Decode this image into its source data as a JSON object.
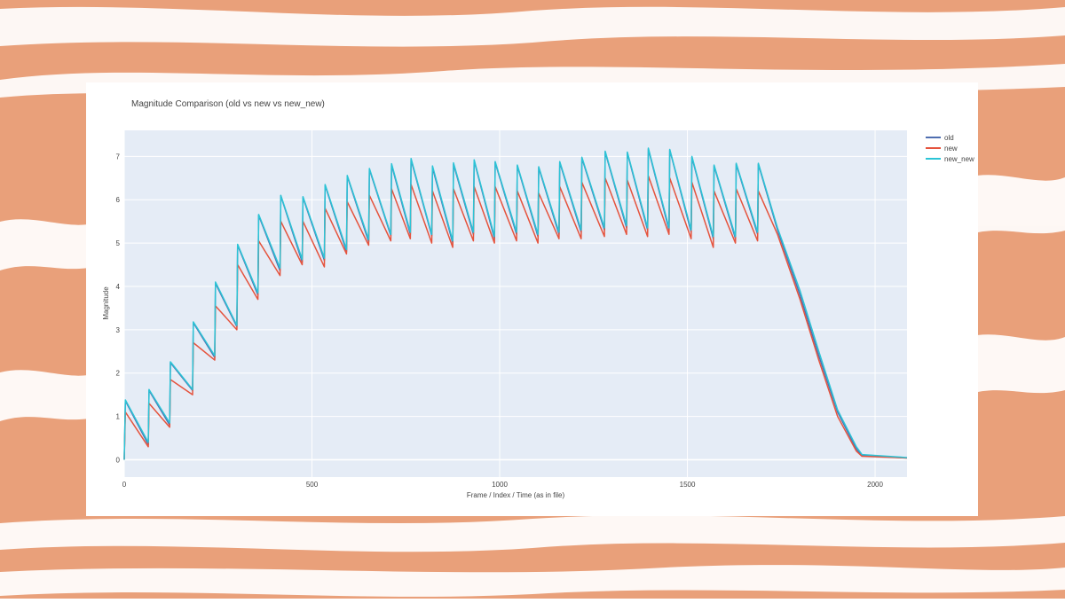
{
  "chart_data": {
    "type": "line",
    "title": "Magnitude Comparison (old vs new vs new_new)",
    "x_label": "Frame / Index / Time (as in file)",
    "y_label": "Magnitude",
    "x": [
      0,
      3,
      64,
      66,
      121,
      123,
      182,
      184,
      241,
      243,
      300,
      302,
      356,
      358,
      415,
      417,
      474,
      476,
      533,
      535,
      592,
      594,
      651,
      653,
      710,
      712,
      762,
      764,
      819,
      821,
      875,
      877,
      930,
      932,
      986,
      988,
      1045,
      1047,
      1102,
      1104,
      1158,
      1160,
      1217,
      1219,
      1279,
      1281,
      1338,
      1340,
      1394,
      1396,
      1451,
      1453,
      1510,
      1512,
      1569,
      1571,
      1628,
      1630,
      1687,
      1689,
      1740,
      1800,
      1850,
      1900,
      1950,
      1965,
      2085
    ],
    "series": [
      {
        "name": "old",
        "color": "#4f6eb0",
        "values": [
          0,
          1.36,
          0.35,
          1.6,
          0.8,
          2.24,
          1.6,
          3.16,
          2.36,
          4.07,
          3.07,
          4.95,
          3.8,
          5.64,
          4.36,
          6.09,
          4.56,
          6.05,
          4.6,
          6.33,
          4.8,
          6.54,
          5.03,
          6.7,
          5.17,
          6.8,
          5.2,
          6.92,
          5.17,
          6.74,
          5.0,
          6.82,
          5.2,
          6.9,
          5.1,
          6.86,
          5.2,
          6.78,
          5.15,
          6.74,
          5.2,
          6.86,
          5.25,
          6.96,
          5.3,
          7.1,
          5.35,
          7.08,
          5.3,
          7.17,
          5.3,
          7.15,
          5.25,
          6.98,
          5.1,
          6.78,
          5.1,
          6.82,
          5.2,
          6.82,
          5.3,
          3.8,
          2.4,
          1.1,
          0.25,
          0.1,
          0.04
        ]
      },
      {
        "name": "new",
        "color": "#e5533d",
        "values": [
          0,
          1.1,
          0.3,
          1.3,
          0.75,
          1.85,
          1.5,
          2.7,
          2.3,
          3.55,
          3.0,
          4.5,
          3.7,
          5.05,
          4.25,
          5.5,
          4.5,
          5.5,
          4.45,
          5.8,
          4.75,
          5.95,
          4.95,
          6.1,
          5.05,
          6.25,
          5.1,
          6.35,
          5.0,
          6.2,
          4.9,
          6.25,
          5.05,
          6.3,
          5.0,
          6.3,
          5.05,
          6.2,
          5.0,
          6.15,
          5.1,
          6.3,
          5.1,
          6.4,
          5.15,
          6.5,
          5.2,
          6.45,
          5.15,
          6.55,
          5.2,
          6.5,
          5.1,
          6.4,
          4.9,
          6.2,
          5.0,
          6.25,
          5.05,
          6.2,
          5.2,
          3.7,
          2.3,
          1.0,
          0.2,
          0.08,
          0.04
        ]
      },
      {
        "name": "new_new",
        "color": "#2bc4d6",
        "values": [
          0,
          1.38,
          0.4,
          1.62,
          0.85,
          2.26,
          1.62,
          3.18,
          2.4,
          4.1,
          3.1,
          4.97,
          3.85,
          5.66,
          4.42,
          6.1,
          4.62,
          6.07,
          4.65,
          6.35,
          4.85,
          6.56,
          5.08,
          6.72,
          5.2,
          6.83,
          5.25,
          6.95,
          5.2,
          6.78,
          5.05,
          6.85,
          5.25,
          6.92,
          5.15,
          6.88,
          5.25,
          6.8,
          5.2,
          6.76,
          5.25,
          6.88,
          5.3,
          6.98,
          5.35,
          7.12,
          5.4,
          7.1,
          5.35,
          7.19,
          5.35,
          7.16,
          5.3,
          7.0,
          5.15,
          6.8,
          5.15,
          6.84,
          5.25,
          6.84,
          5.35,
          3.9,
          2.5,
          1.15,
          0.3,
          0.12,
          0.05
        ]
      }
    ],
    "xlim": [
      0,
      2085
    ],
    "ylim": [
      -0.4,
      7.6
    ],
    "xticks": [
      0,
      500,
      1000,
      1500,
      2000
    ],
    "yticks": [
      0,
      1,
      2,
      3,
      4,
      5,
      6,
      7
    ],
    "grid": true,
    "legend": "right"
  }
}
